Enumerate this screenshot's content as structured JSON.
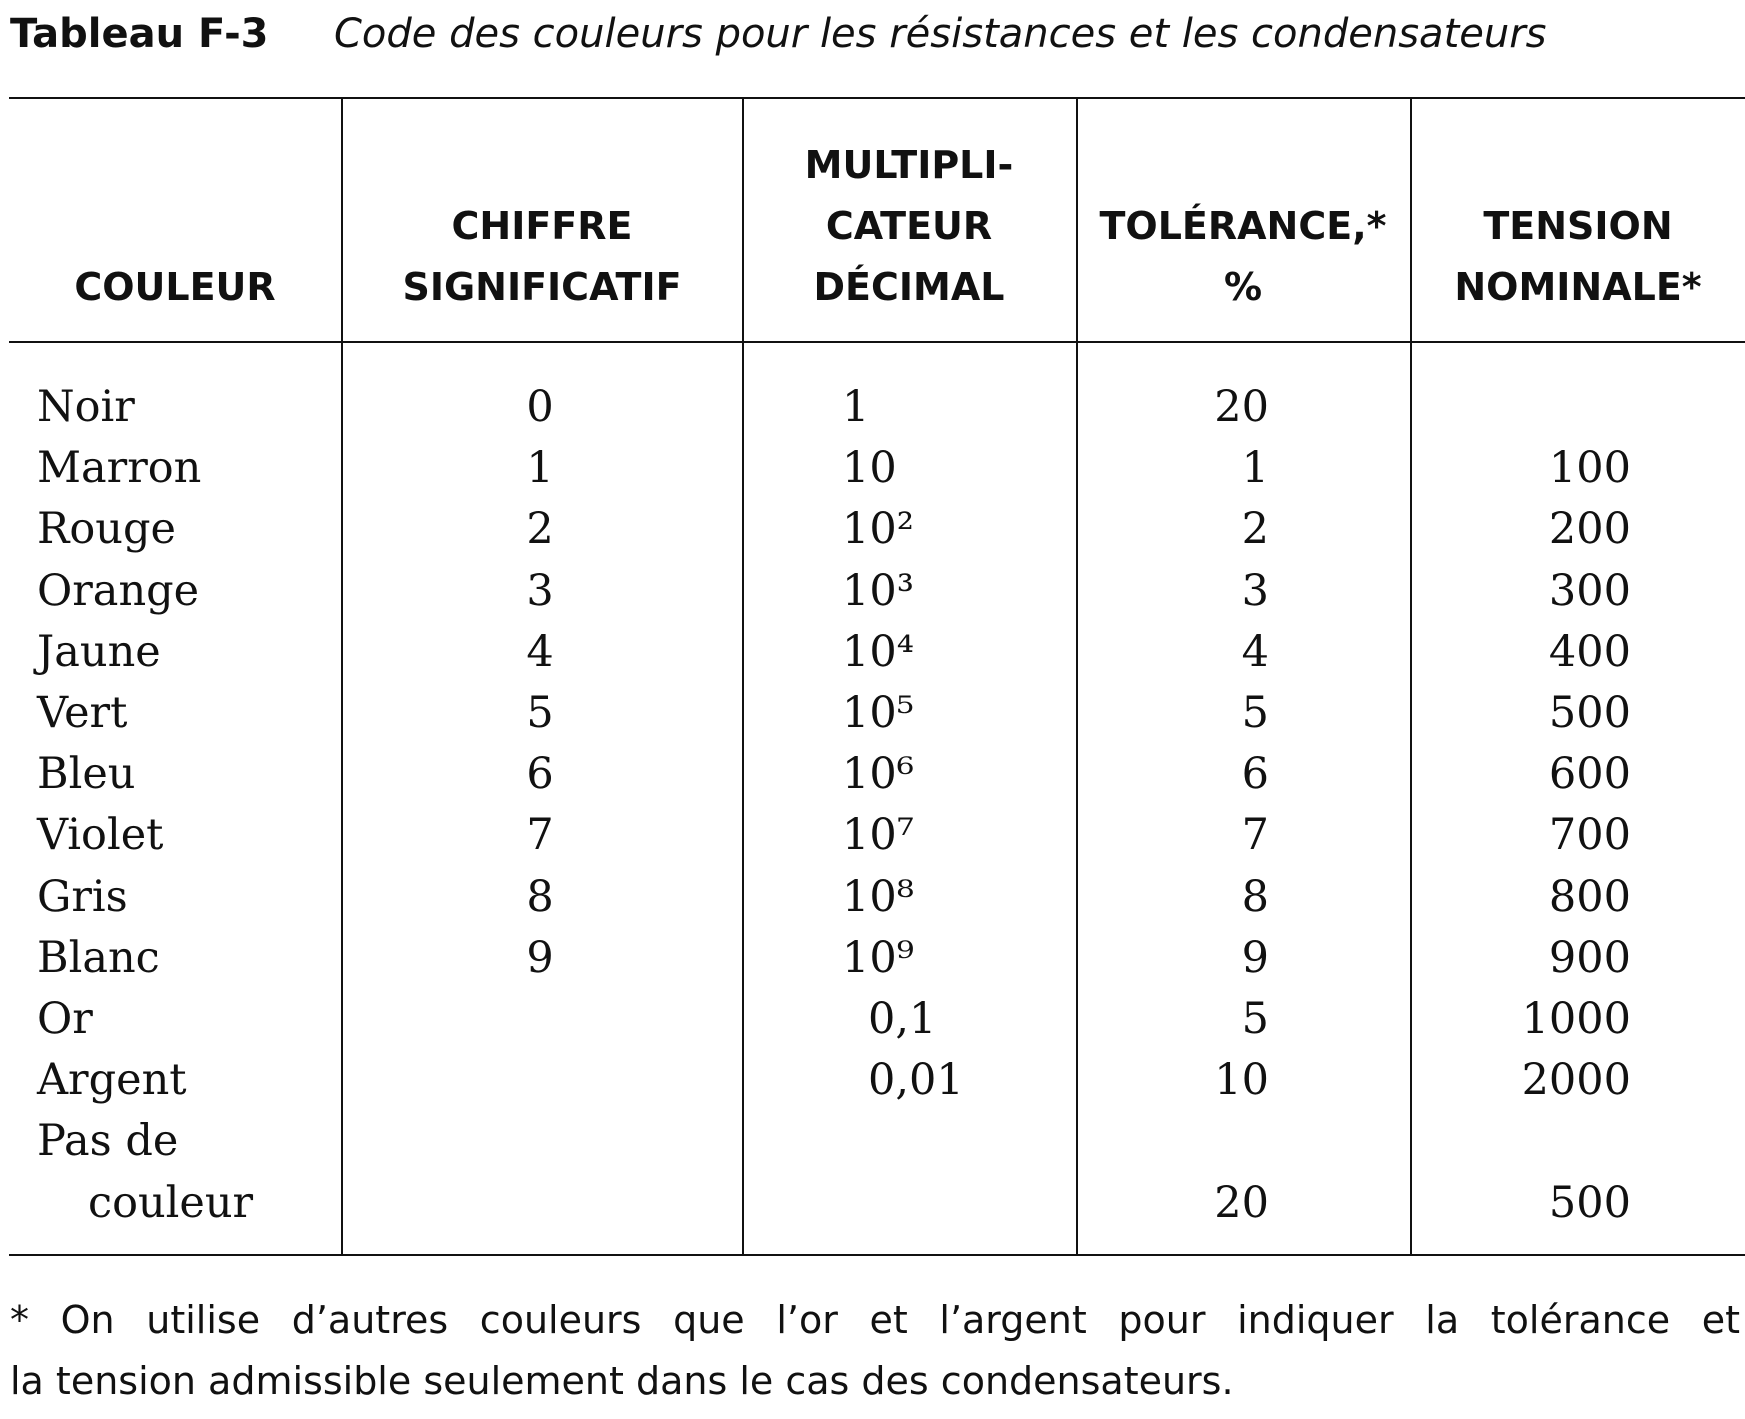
{
  "header": {
    "label": "Tableau F-3",
    "title": "Code des couleurs pour les résistances et les condensateurs"
  },
  "table": {
    "columns": [
      [
        "COULEUR"
      ],
      [
        "CHIFFRE",
        "SIGNIFICATIF"
      ],
      [
        "MULTIPLI-",
        "CATEUR",
        "DÉCIMAL"
      ],
      [
        "TOLÉRANCE,*",
        "%"
      ],
      [
        "TENSION",
        "NOMINALE*"
      ]
    ],
    "rows": [
      [
        [
          "Noir"
        ],
        "0",
        "1",
        "20",
        null
      ],
      [
        [
          "Marron"
        ],
        "1",
        "10",
        "1",
        "100"
      ],
      [
        [
          "Rouge"
        ],
        "2",
        "10²",
        "2",
        "200"
      ],
      [
        [
          "Orange"
        ],
        "3",
        "10³",
        "3",
        "300"
      ],
      [
        [
          "Jaune"
        ],
        "4",
        "10⁴",
        "4",
        "400"
      ],
      [
        [
          "Vert"
        ],
        "5",
        "10⁵",
        "5",
        "500"
      ],
      [
        [
          "Bleu"
        ],
        "6",
        "10⁶",
        "6",
        "600"
      ],
      [
        [
          "Violet"
        ],
        "7",
        "10⁷",
        "7",
        "700"
      ],
      [
        [
          "Gris"
        ],
        "8",
        "10⁸",
        "8",
        "800"
      ],
      [
        [
          "Blanc"
        ],
        "9",
        "10⁹",
        "9",
        "900"
      ],
      [
        [
          "Or"
        ],
        null,
        "0,1",
        "5",
        "1000"
      ],
      [
        [
          "Argent"
        ],
        null,
        "0,01",
        "10",
        "2000"
      ],
      [
        [
          "Pas de",
          "couleur"
        ],
        null,
        null,
        "20",
        "500"
      ]
    ]
  },
  "footnote": [
    "* On utilise d’autres couleurs que l’or et l’argent pour indiquer la tolérance et",
    "la tension admissible seulement dans le cas des condensateurs."
  ]
}
